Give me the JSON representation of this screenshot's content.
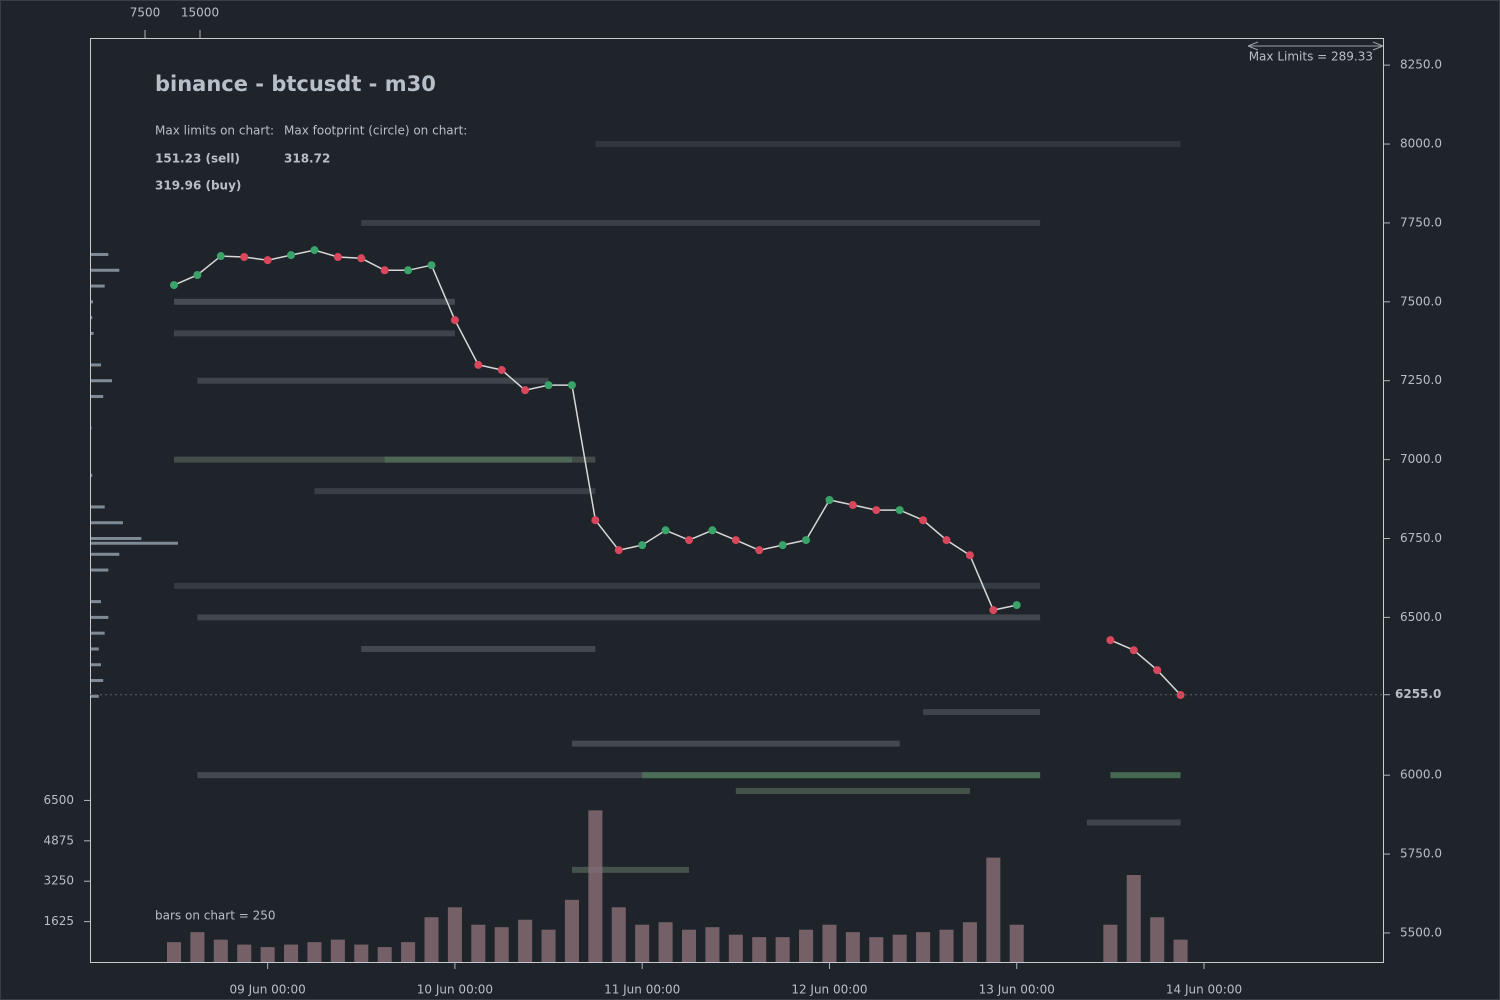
{
  "chart_data": {
    "type": "line",
    "title": "binance - btcusdt - m30",
    "annotations": {
      "limits_label": "Max limits on chart:",
      "sell": "151.23 (sell)",
      "buy": "319.96 (buy)",
      "footprint_label": "Max footprint (circle) on chart:",
      "footprint": "318.72",
      "bars": "bars on chart = 250",
      "max_limits": "Max Limits = 289.33"
    },
    "categories": [
      "08 Jun 12:00",
      "08 Jun 15:00",
      "08 Jun 18:00",
      "08 Jun 21:00",
      "09 Jun 00:00",
      "09 Jun 03:00",
      "09 Jun 06:00",
      "09 Jun 09:00",
      "09 Jun 12:00",
      "09 Jun 15:00",
      "09 Jun 18:00",
      "09 Jun 21:00",
      "10 Jun 00:00",
      "10 Jun 03:00",
      "10 Jun 06:00",
      "10 Jun 09:00",
      "10 Jun 12:00",
      "10 Jun 15:00",
      "10 Jun 18:00",
      "10 Jun 21:00",
      "11 Jun 00:00",
      "11 Jun 03:00",
      "11 Jun 06:00",
      "11 Jun 09:00",
      "11 Jun 12:00",
      "11 Jun 15:00",
      "11 Jun 18:00",
      "11 Jun 21:00",
      "12 Jun 00:00",
      "12 Jun 03:00",
      "12 Jun 06:00",
      "12 Jun 09:00",
      "12 Jun 12:00",
      "12 Jun 15:00",
      "12 Jun 18:00",
      "12 Jun 21:00",
      "13 Jun 00:00",
      "13 Jun 03:00",
      "13 Jun 06:00",
      "13 Jun 09:00",
      "13 Jun 12:00",
      "13 Jun 15:00",
      "13 Jun 18:00",
      "13 Jun 21:00",
      "14 Jun 00:00"
    ],
    "values": [
      7553,
      7585,
      7645,
      7642,
      7632,
      7648,
      7664,
      7642,
      7638,
      7600,
      7600,
      7616,
      7442,
      7300,
      7284,
      7220,
      7236,
      7236,
      6808,
      6713,
      6729,
      6776,
      6745,
      6776,
      6745,
      6713,
      6729,
      6745,
      6872,
      6856,
      6840,
      6840,
      6808,
      6745,
      6697,
      6523,
      6539,
      null,
      null,
      null,
      6428,
      6396,
      6333,
      6254,
      null
    ],
    "line_color": "#d8d8d8",
    "up_color": "#3aa36a",
    "down_color": "#d9475c",
    "ylim": [
      5408,
      8336
    ],
    "yticks": [
      {
        "value": 8250,
        "label": "8250.0"
      },
      {
        "value": 8000,
        "label": "8000.0"
      },
      {
        "value": 7750,
        "label": "7750.0"
      },
      {
        "value": 7500,
        "label": "7500.0"
      },
      {
        "value": 7250,
        "label": "7250.0"
      },
      {
        "value": 7000,
        "label": "7000.0"
      },
      {
        "value": 6750,
        "label": "6750.0"
      },
      {
        "value": 6500,
        "label": "6500.0"
      },
      {
        "value": 6000,
        "label": "6000.0"
      },
      {
        "value": 5750,
        "label": "5750.0"
      },
      {
        "value": 5500,
        "label": "5500.0"
      }
    ],
    "xticks": [
      "09 Jun 00:00",
      "10 Jun 00:00",
      "11 Jun 00:00",
      "12 Jun 00:00",
      "13 Jun 00:00",
      "14 Jun 00:00"
    ],
    "last_price": {
      "value": 6255,
      "label": "6255.0"
    },
    "volume": {
      "values": [
        800,
        1200,
        900,
        700,
        600,
        700,
        800,
        900,
        700,
        600,
        800,
        1800,
        2200,
        1500,
        1400,
        1700,
        1300,
        2500,
        6100,
        2200,
        1500,
        1600,
        1300,
        1400,
        1100,
        1000,
        1000,
        1300,
        1500,
        1200,
        1000,
        1100,
        1200,
        1300,
        1600,
        4200,
        1500,
        null,
        null,
        null,
        1500,
        3500,
        1800,
        900,
        null
      ],
      "color": "#8b6f78",
      "ylim": [
        0,
        7000
      ],
      "yticks": [
        6500,
        4875,
        3250,
        1625
      ]
    },
    "profile": {
      "prices": [
        7650,
        7600,
        7550,
        7500,
        7450,
        7400,
        7300,
        7250,
        7200,
        7100,
        6950,
        6850,
        6800,
        6750,
        6735,
        6700,
        6650,
        6550,
        6500,
        6450,
        6400,
        6350,
        6300,
        6250
      ],
      "values": [
        2500,
        4000,
        2000,
        400,
        300,
        500,
        1500,
        3000,
        1800,
        200,
        300,
        2000,
        4500,
        7000,
        12000,
        4000,
        2500,
        1500,
        2500,
        2000,
        1200,
        1500,
        1800,
        1200
      ],
      "color": "#7e8a96",
      "xlim": [
        0,
        15000
      ],
      "xticks": [
        7500,
        15000
      ]
    },
    "liquidity": [
      {
        "price": 7750,
        "from": "09 Jun 12:00",
        "to": "13 Jun 03:00",
        "color": "#3e444b"
      },
      {
        "price": 8000,
        "from": "10 Jun 18:00",
        "to": "13 Jun 21:00",
        "color": "#343a41"
      },
      {
        "price": 7500,
        "from": "08 Jun 12:00",
        "to": "10 Jun 00:00",
        "color": "#4d5359"
      },
      {
        "price": 7400,
        "from": "08 Jun 12:00",
        "to": "10 Jun 00:00",
        "color": "#444a50"
      },
      {
        "price": 7250,
        "from": "08 Jun 15:00",
        "to": "10 Jun 12:00",
        "color": "#444a50"
      },
      {
        "price": 7000,
        "from": "08 Jun 12:00",
        "to": "10 Jun 18:00",
        "color": "#4a5550"
      },
      {
        "price": 7000,
        "from": "09 Jun 15:00",
        "to": "10 Jun 15:00",
        "color": "#4f6b58"
      },
      {
        "price": 6900,
        "from": "09 Jun 06:00",
        "to": "10 Jun 18:00",
        "color": "#3e444b"
      },
      {
        "price": 6600,
        "from": "08 Jun 12:00",
        "to": "13 Jun 03:00",
        "color": "#3a4047"
      },
      {
        "price": 6500,
        "from": "08 Jun 15:00",
        "to": "13 Jun 03:00",
        "color": "#464c52"
      },
      {
        "price": 6400,
        "from": "09 Jun 12:00",
        "to": "10 Jun 18:00",
        "color": "#4a5056"
      },
      {
        "price": 6200,
        "from": "12 Jun 12:00",
        "to": "13 Jun 03:00",
        "color": "#444a50"
      },
      {
        "price": 6100,
        "from": "10 Jun 15:00",
        "to": "12 Jun 09:00",
        "color": "#4a5056"
      },
      {
        "price": 6000,
        "from": "08 Jun 15:00",
        "to": "13 Jun 03:00",
        "color": "#4a5056"
      },
      {
        "price": 6000,
        "from": "11 Jun 00:00",
        "to": "13 Jun 03:00",
        "color": "#4e7358"
      },
      {
        "price": 6000,
        "from": "13 Jun 12:00",
        "to": "13 Jun 21:00",
        "color": "#4e7358"
      },
      {
        "price": 5950,
        "from": "11 Jun 12:00",
        "to": "12 Jun 18:00",
        "color": "#4a5a50"
      },
      {
        "price": 5850,
        "from": "13 Jun 09:00",
        "to": "13 Jun 21:00",
        "color": "#454b51"
      },
      {
        "price": 5700,
        "from": "10 Jun 15:00",
        "to": "11 Jun 06:00",
        "color": "#4a5a50"
      }
    ]
  }
}
